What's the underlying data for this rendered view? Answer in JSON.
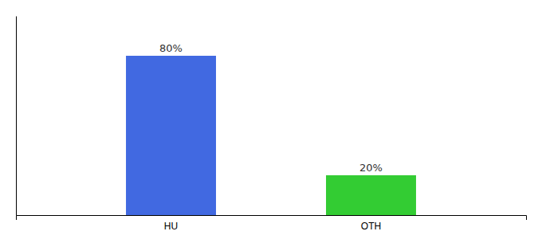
{
  "chart_data": {
    "type": "bar",
    "categories": [
      "HU",
      "OTH"
    ],
    "values": [
      80,
      20
    ],
    "value_labels": [
      "80%",
      "20%"
    ],
    "colors": [
      "#4169e1",
      "#33cc33"
    ],
    "ylim": [
      0,
      100
    ],
    "data_labels": true,
    "tick_labels": "x"
  }
}
